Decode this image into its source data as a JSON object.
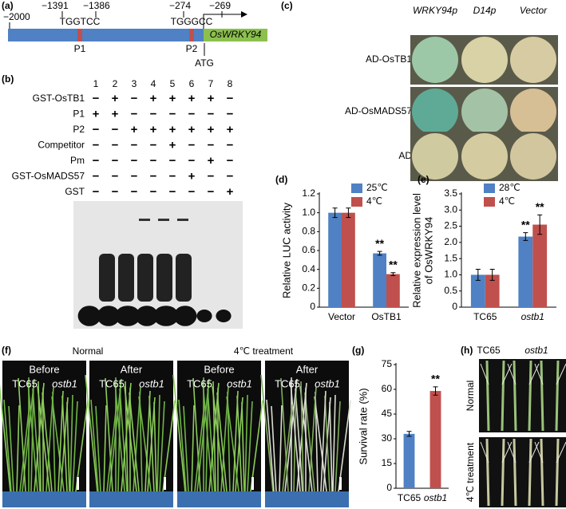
{
  "panels": {
    "a": {
      "label": "(a)",
      "start": "−2000",
      "site1": {
        "left": "−1391",
        "right": "−1386",
        "sequence": "TGGTCC",
        "name": "P1"
      },
      "site2": {
        "left": "−274",
        "right": "−269",
        "sequence": "TGGGCC",
        "name": "P2"
      },
      "start_codon": "ATG",
      "gene": "OsWRKY94"
    },
    "b": {
      "label": "(b)",
      "lanes": [
        "1",
        "2",
        "3",
        "4",
        "5",
        "6",
        "7",
        "8"
      ],
      "rows": [
        {
          "label": "GST-OsTB1",
          "signs": [
            "−",
            "+",
            "−",
            "+",
            "+",
            "+",
            "+",
            "−"
          ]
        },
        {
          "label": "P1",
          "signs": [
            "+",
            "+",
            "−",
            "−",
            "−",
            "−",
            "−",
            "−"
          ]
        },
        {
          "label": "P2",
          "signs": [
            "−",
            "−",
            "+",
            "+",
            "+",
            "+",
            "+",
            "+"
          ]
        },
        {
          "label": "Competitor",
          "signs": [
            "−",
            "−",
            "−",
            "−",
            "+",
            "−",
            "−",
            "−"
          ]
        },
        {
          "label": "Pm",
          "signs": [
            "−",
            "−",
            "−",
            "−",
            "−",
            "−",
            "+",
            "−"
          ]
        },
        {
          "label": "GST-OsMADS57",
          "signs": [
            "−",
            "−",
            "−",
            "−",
            "−",
            "+",
            "−",
            "−"
          ]
        },
        {
          "label": "GST",
          "signs": [
            "−",
            "−",
            "−",
            "−",
            "−",
            "−",
            "−",
            "+"
          ]
        }
      ]
    },
    "c": {
      "label": "(c)",
      "columns": [
        "WRKY94p",
        "D14p",
        "Vector"
      ],
      "rows": [
        "AD-OsTB1",
        "AD-OsMADS57",
        "AD"
      ]
    },
    "f": {
      "label": "(f)",
      "groups": [
        "Normal",
        "4℃ treatment"
      ],
      "photos": [
        {
          "stage": "Before",
          "left": "TC65",
          "right": "ostb1"
        },
        {
          "stage": "After",
          "left": "TC65",
          "right": "ostb1"
        },
        {
          "stage": "Before",
          "left": "TC65",
          "right": "ostb1"
        },
        {
          "stage": "After",
          "left": "TC65",
          "right": "ostb1"
        }
      ]
    },
    "h": {
      "label": "(h)",
      "columns": [
        "TC65",
        "ostb1"
      ],
      "rows": [
        "Normal",
        "4℃ treatment"
      ]
    }
  },
  "chart_data": [
    {
      "type": "bar",
      "label": "(d)",
      "ylabel": [
        "Relative LUC activity"
      ],
      "categories": [
        "Vector",
        "OsTB1"
      ],
      "series": [
        {
          "name": "25℃",
          "color": "#4f81c4",
          "values": [
            1.0,
            0.57
          ],
          "errors": [
            0.05,
            0.02
          ]
        },
        {
          "name": "4℃",
          "color": "#c0504d",
          "values": [
            1.0,
            0.35
          ],
          "errors": [
            0.05,
            0.015
          ]
        }
      ],
      "annotations": [
        {
          "text": "**",
          "category": "OsTB1",
          "series": "25℃"
        },
        {
          "text": "**",
          "category": "OsTB1",
          "series": "4℃"
        }
      ],
      "ylim": [
        0,
        1.2
      ],
      "yticks": [
        0,
        0.2,
        0.4,
        0.6,
        0.8,
        {
          "value": 1,
          "label": "1.0"
        },
        1.2
      ]
    },
    {
      "type": "bar",
      "label": "(e)",
      "ylabel": [
        "Relative expression level",
        "of OsWRKY94"
      ],
      "categories": [
        "TC65",
        "ostb1"
      ],
      "series": [
        {
          "name": "28℃",
          "color": "#4f81c4",
          "values": [
            1.0,
            2.18
          ],
          "errors": [
            0.17,
            0.12
          ]
        },
        {
          "name": "4℃",
          "color": "#c0504d",
          "values": [
            1.0,
            2.55
          ],
          "errors": [
            0.17,
            0.3
          ]
        }
      ],
      "annotations": [
        {
          "text": "**",
          "category": "ostb1",
          "series": "28℃"
        },
        {
          "text": "**",
          "category": "ostb1",
          "series": "4℃"
        }
      ],
      "ylim": [
        0,
        3.5
      ],
      "yticks": [
        0,
        0.5,
        {
          "value": 1,
          "label": "1.0"
        },
        1.5,
        {
          "value": 2,
          "label": "2.0"
        },
        2.5,
        {
          "value": 3,
          "label": "3.0"
        },
        3.5
      ]
    },
    {
      "type": "bar",
      "label": "(g)",
      "ylabel": [
        "Survival rate (%)"
      ],
      "categories": [
        "TC65",
        "ostb1"
      ],
      "colors": [
        "#4f81c4",
        "#c0504d"
      ],
      "values": [
        33,
        59
      ],
      "errors": [
        1.5,
        2.5
      ],
      "annotations": [
        {
          "text": "**",
          "category": "ostb1"
        }
      ],
      "ylim": [
        0,
        75
      ],
      "yticks": [
        0,
        15,
        30,
        45,
        60,
        75
      ]
    }
  ]
}
